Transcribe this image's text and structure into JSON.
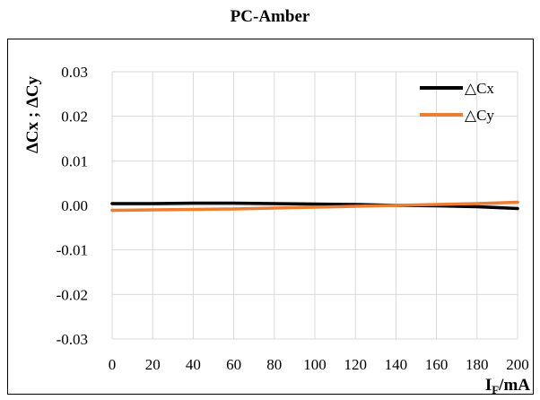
{
  "chart_data": {
    "type": "line",
    "title": "PC-Amber",
    "xlabel_main": "I",
    "xlabel_sub": "F",
    "xlabel_unit": "/mA",
    "ylabel": "ΔCx ; ΔCy",
    "xlim": [
      0,
      200
    ],
    "ylim": [
      -0.03,
      0.03
    ],
    "x_ticks": [
      0,
      20,
      40,
      60,
      80,
      100,
      120,
      140,
      160,
      180,
      200
    ],
    "y_ticks": [
      0.03,
      0.02,
      0.01,
      0.0,
      -0.01,
      -0.02,
      -0.03
    ],
    "y_tick_labels": [
      "0.03",
      "0.02",
      "0.01",
      "0.00",
      "-0.01",
      "-0.02",
      "-0.03"
    ],
    "grid": true,
    "legend_position": "top-right",
    "x": [
      0,
      20,
      40,
      60,
      80,
      100,
      120,
      140,
      160,
      180,
      200
    ],
    "series": [
      {
        "name": "△Cx",
        "color": "#000000",
        "values": [
          0.0004,
          0.0004,
          0.0005,
          0.0005,
          0.0004,
          0.0003,
          0.0002,
          0.0,
          -0.0001,
          -0.0003,
          -0.0007
        ]
      },
      {
        "name": "△Cy",
        "color": "#ED7D31",
        "values": [
          -0.0011,
          -0.001,
          -0.0009,
          -0.0008,
          -0.0006,
          -0.0004,
          -0.0002,
          0.0,
          0.0002,
          0.0004,
          0.0007
        ]
      }
    ]
  }
}
